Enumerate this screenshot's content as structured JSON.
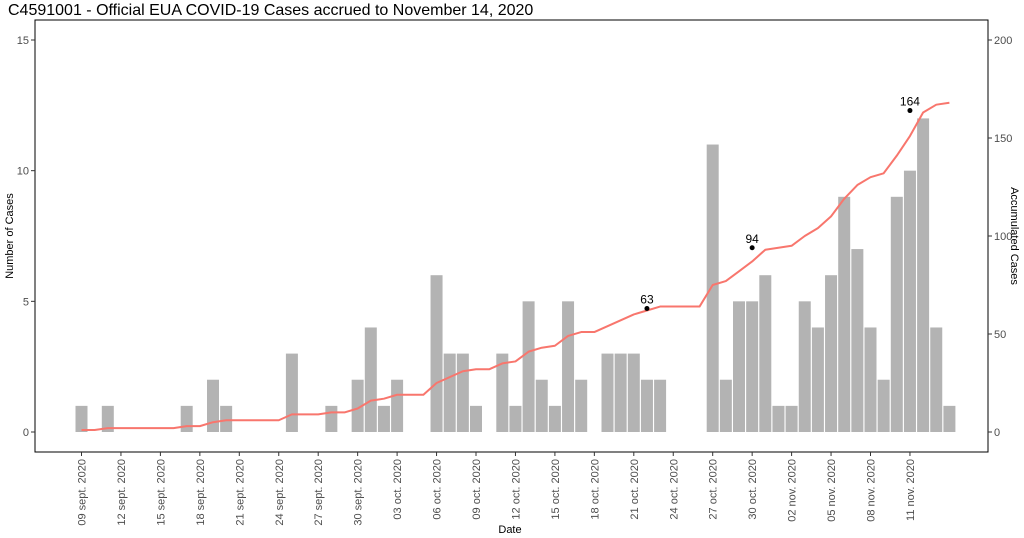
{
  "chart_data": {
    "type": "bar",
    "title": "C4591001 - Official EUA COVID-19 Cases accrued to November 14, 2020",
    "xlabel": "Date",
    "ylabel": "Number of Cases",
    "y2label": "Accumulated Cases",
    "start_date": "2020-09-09",
    "ylim": [
      0,
      15
    ],
    "y_ticks": [
      0,
      5,
      10,
      15
    ],
    "y2lim": [
      0,
      200
    ],
    "y2_ticks": [
      0,
      50,
      100,
      150,
      200
    ],
    "x_tick_labels": [
      "09 sept. 2020",
      "12 sept. 2020",
      "15 sept. 2020",
      "18 sept. 2020",
      "21 sept. 2020",
      "24 sept. 2020",
      "27 sept. 2020",
      "30 sept. 2020",
      "03 oct. 2020",
      "06 oct. 2020",
      "09 oct. 2020",
      "12 oct. 2020",
      "15 oct. 2020",
      "18 oct. 2020",
      "21 oct. 2020",
      "24 oct. 2020",
      "27 oct. 2020",
      "30 oct. 2020",
      "02 nov. 2020",
      "05 nov. 2020",
      "08 nov. 2020",
      "11 nov. 2020"
    ],
    "series": [
      {
        "type": "bar",
        "axis": "left",
        "color": "#b3b3b3",
        "values": [
          1,
          0,
          1,
          0,
          0,
          0,
          0,
          0,
          1,
          0,
          2,
          1,
          0,
          0,
          0,
          0,
          3,
          0,
          0,
          1,
          0,
          2,
          4,
          1,
          2,
          0,
          0,
          6,
          3,
          3,
          1,
          0,
          3,
          1,
          5,
          2,
          1,
          5,
          2,
          0,
          3,
          3,
          3,
          2,
          2,
          0,
          0,
          0,
          11,
          2,
          5,
          5,
          6,
          1,
          1,
          5,
          4,
          6,
          9,
          7,
          4,
          2,
          9,
          10,
          12,
          4,
          1
        ]
      },
      {
        "type": "line",
        "axis": "right",
        "color": "#f8766d",
        "values": [
          1,
          1,
          2,
          2,
          2,
          2,
          2,
          2,
          3,
          3,
          5,
          6,
          6,
          6,
          6,
          6,
          9,
          9,
          9,
          10,
          10,
          12,
          16,
          17,
          19,
          19,
          19,
          25,
          28,
          31,
          32,
          32,
          35,
          36,
          41,
          43,
          44,
          49,
          51,
          51,
          54,
          57,
          60,
          62,
          64,
          64,
          64,
          64,
          75,
          77,
          82,
          87,
          93,
          94,
          95,
          100,
          104,
          110,
          119,
          126,
          130,
          132,
          141,
          151,
          163,
          167,
          168
        ]
      }
    ],
    "annotations": [
      {
        "label": "63",
        "index": 43,
        "value": 63
      },
      {
        "label": "94",
        "index": 51,
        "value": 94
      },
      {
        "label": "164",
        "index": 63,
        "value": 164
      }
    ]
  }
}
